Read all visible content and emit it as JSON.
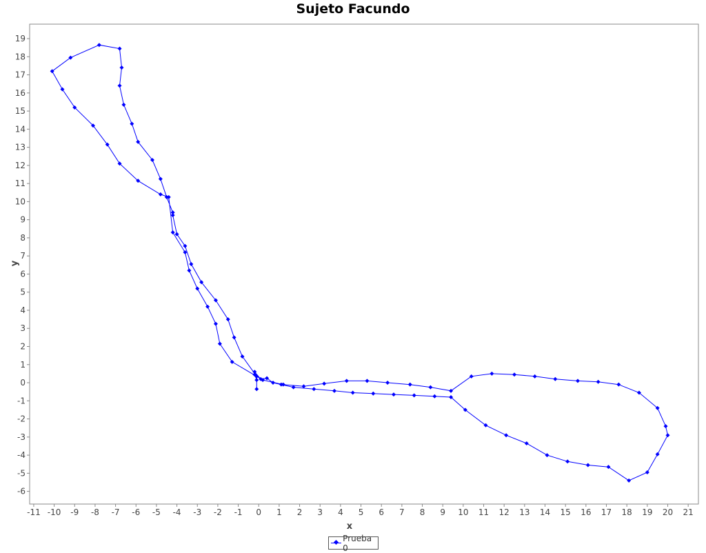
{
  "chart_data": {
    "type": "line",
    "title": "Sujeto Facundo",
    "xlabel": "x",
    "ylabel": "y",
    "xlim": [
      -11.2,
      21.5
    ],
    "ylim": [
      -6.7,
      19.8
    ],
    "xticks": [
      -11,
      -10,
      -9,
      -8,
      -7,
      -6,
      -5,
      -4,
      -3,
      -2,
      -1,
      0,
      1,
      2,
      3,
      4,
      5,
      6,
      7,
      8,
      9,
      10,
      11,
      12,
      13,
      14,
      15,
      16,
      17,
      18,
      19,
      20,
      21
    ],
    "yticks": [
      -6,
      -5,
      -4,
      -3,
      -2,
      -1,
      0,
      1,
      2,
      3,
      4,
      5,
      6,
      7,
      8,
      9,
      10,
      11,
      12,
      13,
      14,
      15,
      16,
      17,
      18,
      19
    ],
    "grid": false,
    "legend_position": "bottom-center",
    "series": [
      {
        "name": "Prueba 0",
        "color": "#0000ff",
        "marker": "diamond",
        "x": [
          -0.1,
          -0.1,
          -0.2,
          -0.2,
          0.1,
          0.4,
          0.7,
          1.1,
          1.7,
          2.7,
          3.7,
          4.6,
          5.6,
          6.6,
          7.6,
          8.6,
          9.4,
          10.1,
          11.1,
          12.1,
          13.1,
          14.1,
          15.1,
          16.1,
          17.1,
          18.1,
          19.0,
          19.5,
          20.0,
          19.9,
          19.5,
          18.6,
          17.6,
          16.6,
          15.6,
          14.5,
          13.5,
          12.5,
          11.4,
          10.4,
          9.4,
          8.4,
          7.4,
          6.3,
          5.3,
          4.3,
          3.2,
          2.2,
          1.2,
          0.2,
          -1.3,
          -1.9,
          -2.1,
          -2.5,
          -3.0,
          -3.4,
          -3.6,
          -4.2,
          -4.4,
          -4.8,
          -5.9,
          -6.8,
          -7.4,
          -8.1,
          -9.0,
          -9.6,
          -10.1,
          -9.2,
          -7.8,
          -6.8,
          -6.7,
          -6.8,
          -6.6,
          -6.2,
          -5.9,
          -5.2,
          -4.8,
          -4.5,
          -4.2,
          -4.2,
          -4.0,
          -3.6,
          -3.3,
          -2.8,
          -2.1,
          -1.5,
          -1.2,
          -0.8,
          -0.1
        ],
        "y": [
          -0.35,
          0.15,
          0.45,
          0.6,
          0.2,
          0.25,
          0.0,
          -0.1,
          -0.25,
          -0.35,
          -0.45,
          -0.55,
          -0.6,
          -0.65,
          -0.7,
          -0.75,
          -0.8,
          -1.5,
          -2.35,
          -2.9,
          -3.35,
          -4.0,
          -4.35,
          -4.55,
          -4.65,
          -5.4,
          -4.95,
          -3.95,
          -2.9,
          -2.4,
          -1.4,
          -0.55,
          -0.1,
          0.05,
          0.1,
          0.2,
          0.35,
          0.45,
          0.5,
          0.35,
          -0.45,
          -0.25,
          -0.1,
          0.0,
          0.1,
          0.1,
          -0.05,
          -0.2,
          -0.1,
          0.15,
          1.15,
          2.15,
          3.25,
          4.2,
          5.2,
          6.2,
          7.2,
          8.3,
          10.25,
          10.4,
          11.15,
          12.1,
          13.15,
          14.2,
          15.2,
          16.2,
          17.2,
          17.95,
          18.65,
          18.45,
          17.4,
          16.4,
          15.35,
          14.3,
          13.3,
          12.3,
          11.25,
          10.25,
          9.4,
          9.25,
          8.2,
          7.55,
          6.55,
          5.55,
          4.55,
          3.5,
          2.5,
          1.45,
          0.35
        ]
      }
    ]
  }
}
